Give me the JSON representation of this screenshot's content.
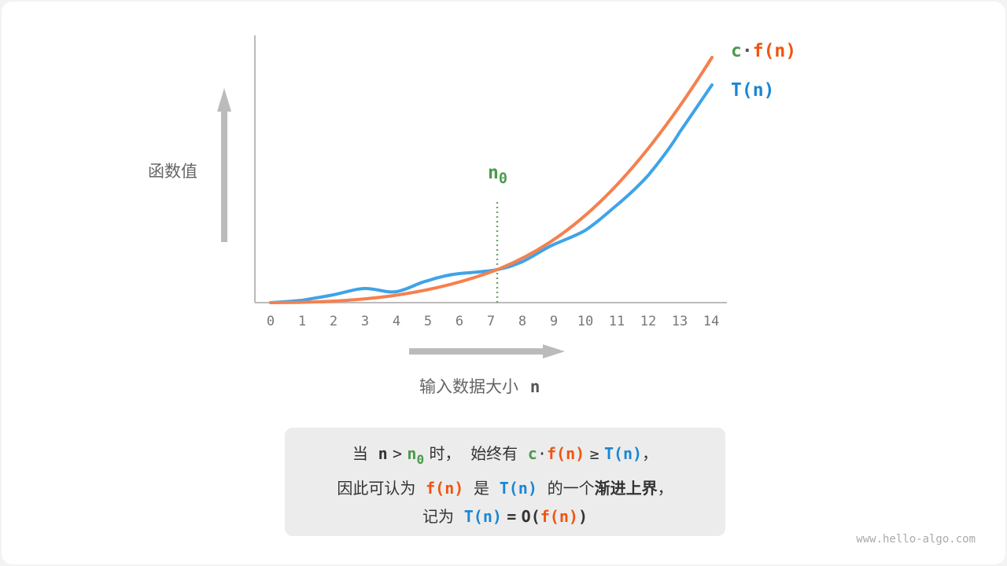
{
  "y_axis_label": "函数值",
  "x_axis_label": "输入数据大小",
  "x_axis_var": "n",
  "x_ticks": [
    "0",
    "1",
    "2",
    "3",
    "4",
    "5",
    "6",
    "7",
    "8",
    "9",
    "10",
    "11",
    "12",
    "13",
    "14"
  ],
  "n0_label": "n",
  "n0_sub": "0",
  "legend": {
    "c": "c",
    "dot": "·",
    "f": "f(n)",
    "T": "T(n)"
  },
  "caption": {
    "l1": [
      "当",
      "n",
      ">",
      "n",
      "0",
      "时，",
      "始终有",
      "c",
      "·",
      "f(n)",
      "≥",
      "T(n)",
      "，"
    ],
    "l2": [
      "因此可认为",
      "f(n)",
      "是",
      "T(n)",
      "的一个",
      "渐进上界",
      "，"
    ],
    "l3": [
      "记为",
      "T(n)",
      "=",
      "O(",
      "f(n)",
      ")"
    ]
  },
  "watermark": "www.hello-algo.com",
  "colors": {
    "cf": "#f5804e",
    "T": "#3fa3e8",
    "green": "#4b9a4b",
    "axis": "#bbbbbb"
  }
}
